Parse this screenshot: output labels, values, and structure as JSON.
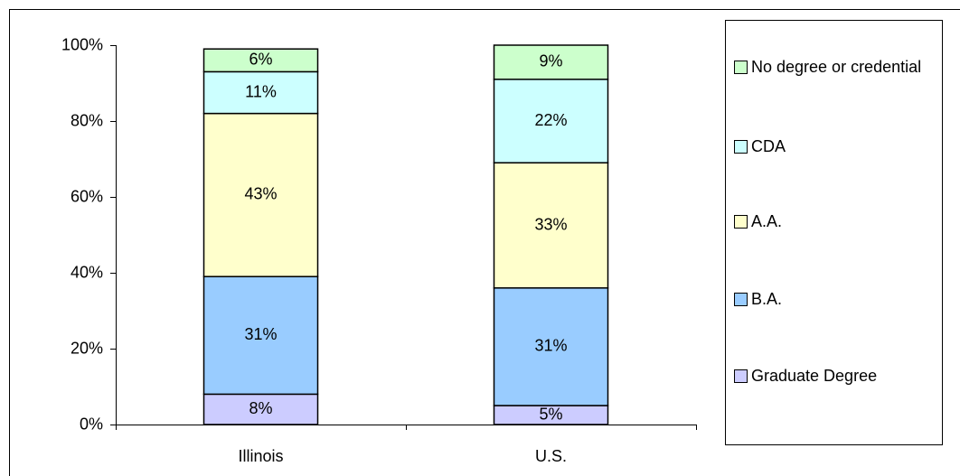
{
  "chart_data": {
    "type": "stacked_bar",
    "categories": [
      "Illinois",
      "U.S."
    ],
    "series": [
      {
        "name": "Graduate Degree",
        "color": "#ccccff",
        "values": [
          8,
          5
        ],
        "value_labels": [
          "8%",
          "5%"
        ]
      },
      {
        "name": "B.A.",
        "color": "#99ccff",
        "values": [
          31,
          31
        ],
        "value_labels": [
          "31%",
          "31%"
        ]
      },
      {
        "name": "A.A.",
        "color": "#ffffcc",
        "values": [
          43,
          33
        ],
        "value_labels": [
          "43%",
          "33%"
        ]
      },
      {
        "name": "CDA",
        "color": "#ccffff",
        "values": [
          11,
          22
        ],
        "value_labels": [
          "11%",
          "22%"
        ]
      },
      {
        "name": "No degree or credential",
        "color": "#ccffcc",
        "values": [
          6,
          9
        ],
        "value_labels": [
          "6%",
          "9%"
        ]
      }
    ],
    "ylim": [
      0,
      100
    ],
    "yticks": [
      {
        "value": 0,
        "label": "0%"
      },
      {
        "value": 20,
        "label": "20%"
      },
      {
        "value": 40,
        "label": "40%"
      },
      {
        "value": 60,
        "label": "60%"
      },
      {
        "value": 80,
        "label": "80%"
      },
      {
        "value": 100,
        "label": "100%"
      }
    ],
    "legend": "right"
  }
}
